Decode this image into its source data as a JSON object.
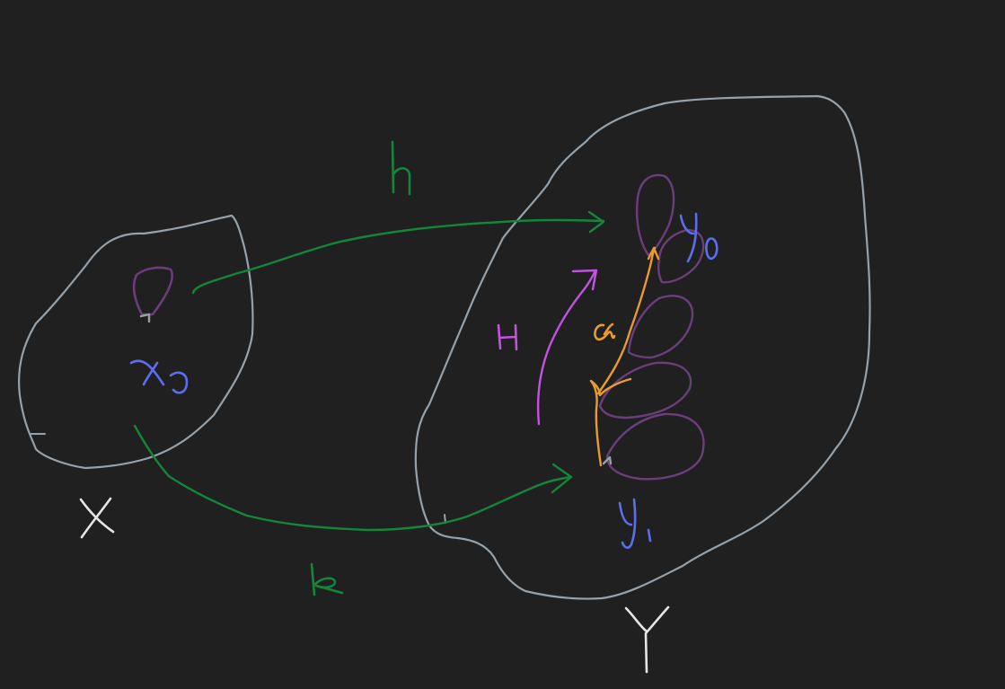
{
  "labels": {
    "h": "h",
    "k": "k",
    "H": "H",
    "alpha": "α",
    "x0": "x₀",
    "y0": "y₀",
    "y1": "y₁",
    "X": "X",
    "Y": "Y"
  },
  "colors": {
    "background": "#202020",
    "blob": "#95a1ab",
    "map_arrow": "#13863a",
    "point": "#5b6ef0",
    "loop": "#6a3e7a",
    "homotopy": "#c252e0",
    "path": "#e89b31",
    "white_label": "#e6e6e6"
  }
}
